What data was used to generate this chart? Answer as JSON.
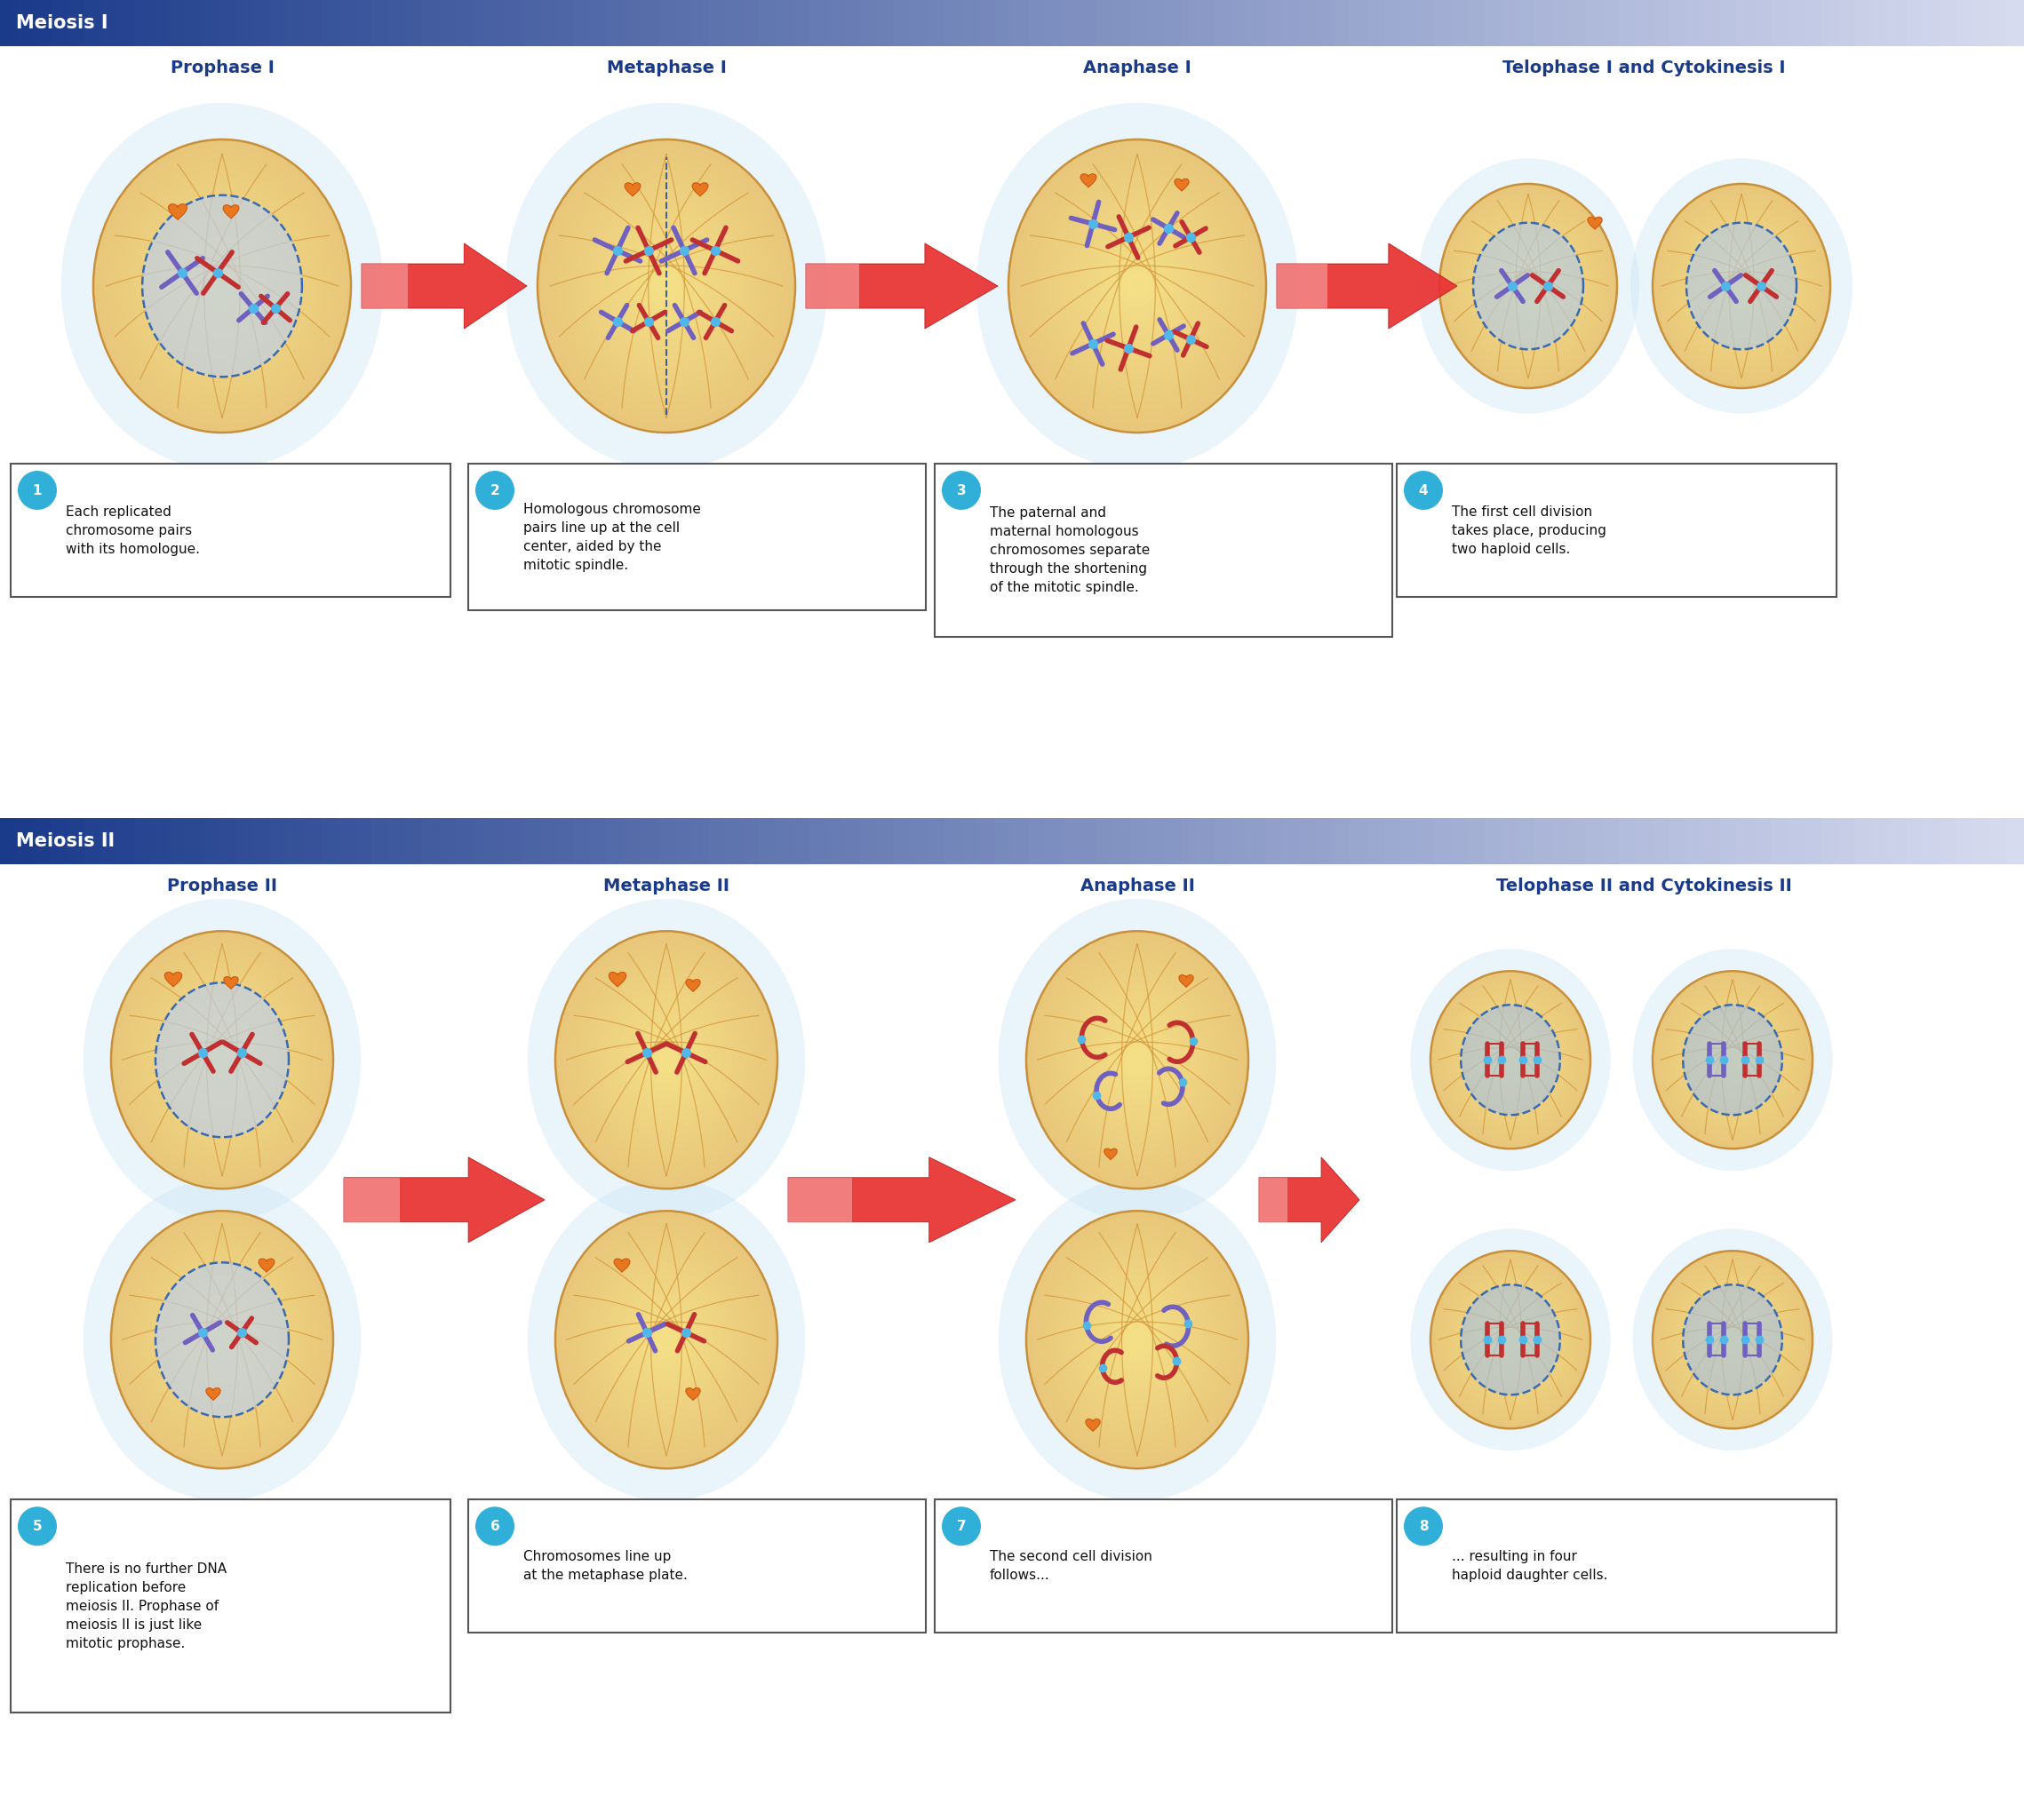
{
  "fig_width": 22.78,
  "fig_height": 20.49,
  "bg_color": "#ffffff",
  "header_color_left": "#1a3a8a",
  "header_color_right": "#e8eaf6",
  "header_text_color": "#ffffff",
  "phase_title_color": "#1a3a8a",
  "cell_outer_color": "#e8c87a",
  "cell_inner_color": "#d4b86a",
  "nucleus_color": "#c8d4e8",
  "nucleus_border": "#3a6ab0",
  "arrow_color": "#e84040",
  "box_border": "#222222",
  "box_bg": "#ffffff",
  "box_number_bg": "#30b0d8",
  "box_number_color": "#ffffff",
  "meiosis1_label": "Meiosis I",
  "meiosis2_label": "Meiosis II",
  "phases1": [
    "Prophase I",
    "Metaphase I",
    "Anaphase I",
    "Telophase I and Cytokinesis I"
  ],
  "phases2": [
    "Prophase II",
    "Metaphase II",
    "Anaphase II",
    "Telophase II and Cytokinesis II"
  ],
  "descriptions": [
    "Each replicated\nchromosome pairs\nwith its homologue.",
    "Homologous chromosome\npairs line up at the cell\ncenter, aided by the\nmitotic spindle.",
    "The paternal and\nmaternal homologous\nchromosomes separate\nthrough the shortening\nof the mitotic spindle.",
    "The first cell division\ntakes place, producing\ntwo haploid cells.",
    "There is no further DNA\nreplication before\nmeiosis II. Prophase of\nmeiosis II is just like\nmitotic prophase.",
    "Chromosomes line up\nat the metaphase plate.",
    "The second cell division\nfollows...",
    "... resulting in four\nhaploid daughter cells."
  ]
}
